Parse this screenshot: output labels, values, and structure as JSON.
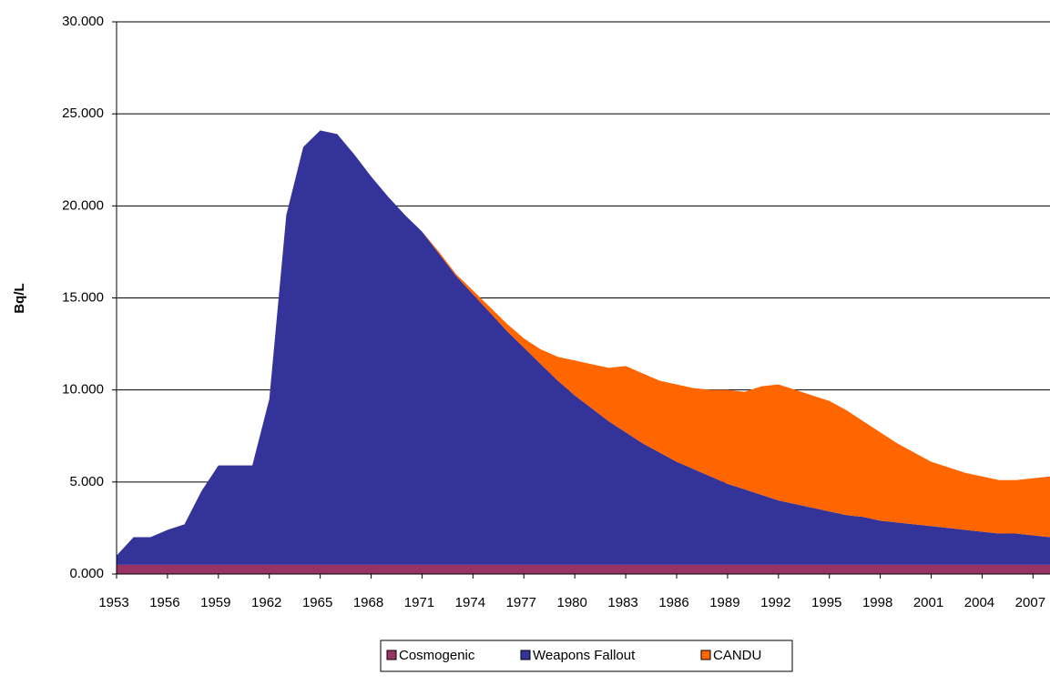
{
  "chart_data": {
    "type": "stacked_area",
    "ylabel": "Bq/L",
    "x": [
      1953,
      1954,
      1955,
      1956,
      1957,
      1958,
      1959,
      1960,
      1961,
      1962,
      1963,
      1964,
      1965,
      1966,
      1967,
      1968,
      1969,
      1970,
      1971,
      1972,
      1973,
      1974,
      1975,
      1976,
      1977,
      1978,
      1979,
      1980,
      1981,
      1982,
      1983,
      1984,
      1985,
      1986,
      1987,
      1988,
      1989,
      1990,
      1991,
      1992,
      1993,
      1994,
      1995,
      1996,
      1997,
      1998,
      1999,
      2000,
      2001,
      2002,
      2003,
      2004,
      2005,
      2006,
      2007,
      2008
    ],
    "xlim": [
      1953,
      2008
    ],
    "xticks": [
      1953,
      1956,
      1959,
      1962,
      1965,
      1968,
      1971,
      1974,
      1977,
      1980,
      1983,
      1986,
      1989,
      1992,
      1995,
      1998,
      2001,
      2004,
      2007
    ],
    "ylim": [
      0,
      30
    ],
    "yticks": [
      {
        "value": 0,
        "label": "0.000"
      },
      {
        "value": 5,
        "label": "5.000"
      },
      {
        "value": 10,
        "label": "10.000"
      },
      {
        "value": 15,
        "label": "15.000"
      },
      {
        "value": 20,
        "label": "20.000"
      },
      {
        "value": 25,
        "label": "25.000"
      },
      {
        "value": 30,
        "label": "30.000"
      }
    ],
    "grid": true,
    "legend": "bottom",
    "series": [
      {
        "name": "Cosmogenic",
        "color": "#993366",
        "values": [
          0.5,
          0.5,
          0.5,
          0.5,
          0.5,
          0.5,
          0.5,
          0.5,
          0.5,
          0.5,
          0.5,
          0.5,
          0.5,
          0.5,
          0.5,
          0.5,
          0.5,
          0.5,
          0.5,
          0.5,
          0.5,
          0.5,
          0.5,
          0.5,
          0.5,
          0.5,
          0.5,
          0.5,
          0.5,
          0.5,
          0.5,
          0.5,
          0.5,
          0.5,
          0.5,
          0.5,
          0.5,
          0.5,
          0.5,
          0.5,
          0.5,
          0.5,
          0.5,
          0.5,
          0.5,
          0.5,
          0.5,
          0.5,
          0.5,
          0.5,
          0.5,
          0.5,
          0.5,
          0.5,
          0.5,
          0.5
        ]
      },
      {
        "name": "Weapons Fallout",
        "color": "#333399",
        "values": [
          0.5,
          1.5,
          1.5,
          1.9,
          2.2,
          4.0,
          5.4,
          5.4,
          5.4,
          9.0,
          19.0,
          22.7,
          23.6,
          23.4,
          22.3,
          21.1,
          20.0,
          19.0,
          18.1,
          16.9,
          15.7,
          14.7,
          13.7,
          12.7,
          11.8,
          10.9,
          10.0,
          9.2,
          8.5,
          7.8,
          7.2,
          6.6,
          6.1,
          5.6,
          5.2,
          4.8,
          4.4,
          4.1,
          3.8,
          3.5,
          3.3,
          3.1,
          2.9,
          2.7,
          2.6,
          2.4,
          2.3,
          2.2,
          2.1,
          2.0,
          1.9,
          1.8,
          1.7,
          1.7,
          1.6,
          1.5
        ]
      },
      {
        "name": "CANDU",
        "color": "#ff6600",
        "values": [
          0,
          0,
          0,
          0,
          0,
          0,
          0,
          0,
          0,
          0,
          0,
          0,
          0,
          0,
          0,
          0,
          0,
          0,
          0,
          0.1,
          0.1,
          0.2,
          0.3,
          0.4,
          0.5,
          0.8,
          1.3,
          1.9,
          2.4,
          2.9,
          3.6,
          3.8,
          3.9,
          4.2,
          4.4,
          4.7,
          5.1,
          5.3,
          5.9,
          6.3,
          6.2,
          6.1,
          6.0,
          5.7,
          5.2,
          4.8,
          4.3,
          3.9,
          3.5,
          3.3,
          3.1,
          3.0,
          2.9,
          2.9,
          3.1,
          3.3
        ]
      }
    ]
  }
}
